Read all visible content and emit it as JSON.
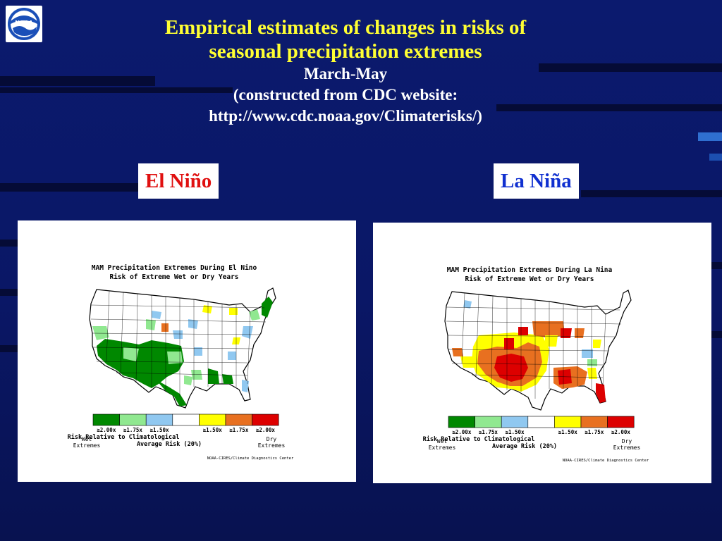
{
  "slide": {
    "title_line1": "Empirical estimates of changes in risks of",
    "title_line2": "seasonal precipitation extremes",
    "season": "March-May",
    "source_line": "(constructed from CDC website:",
    "source_url": "http://www.cdc.noaa.gov/Climaterisks/)",
    "logo_text": "NOAA"
  },
  "labels": {
    "el_nino": "El Niño",
    "la_nina": "La Niña"
  },
  "maps": [
    {
      "id": "el-nino",
      "title1": "MAM Precipitation Extremes During El Nino",
      "title2": "Risk of Extreme Wet or Dry Years"
    },
    {
      "id": "la-nina",
      "title1": "MAM Precipitation Extremes During La Nina",
      "title2": "Risk of Extreme Wet or Dry Years"
    }
  ],
  "legend": {
    "colors": [
      "#008800",
      "#90e890",
      "#90c8f0",
      "#ffffff",
      "#ffff00",
      "#e87020",
      "#dd0000"
    ],
    "ticks": [
      "≥2.00x",
      "≥1.75x",
      "≥1.50x",
      "",
      "≥1.50x",
      "≥1.75x",
      "≥2.00x"
    ],
    "caption1": "Risk Relative to Climatological",
    "caption2": "Average Risk (20%)",
    "wet1": "Wet",
    "wet2": "Extremes",
    "dry1": "Dry",
    "dry2": "Extremes",
    "credit": "NOAA-CIRES/Climate Diagnostics Center"
  },
  "colors": {
    "title_yellow": "#ffff33",
    "el_nino_red": "#e01010",
    "la_nina_blue": "#1030d0"
  }
}
